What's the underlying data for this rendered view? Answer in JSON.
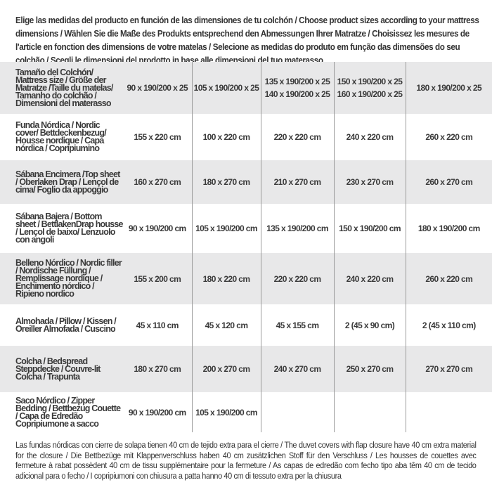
{
  "intro": "Elige las medidas del producto en función de las dimensiones de tu colchón / Choose product sizes according to your mattress dimensions / Wählen Sie die Maße des Produkts entsprechend den Abmessungen Ihrer Matratze / Choisissez les mesures de l'article en fonction des dimensions de votre matelas / Selecione as medidas do produto em função das dimensões do seu colchão / Scegli le dimensioni del prodotto in base alle dimensioni del tuo materasso",
  "table": {
    "header": {
      "label": "Tamaño del Colchón/ Mattress size / Größe der Matratze /Taille du matelas/ Tamanho do colchão / Dimensioni del materasso",
      "cols": [
        [
          "90 x 190/200 x 25"
        ],
        [
          "105 x 190/200 x 25"
        ],
        [
          "135 x 190/200 x 25",
          "140 x 190/200 x 25"
        ],
        [
          "150 x 190/200 x 25",
          "160 x 190/200 x 25"
        ],
        [
          "180 x 190/200 x 25"
        ]
      ]
    },
    "rows": [
      {
        "label": "Funda Nórdica /  Nordic cover/ Bettdeckenbezug/ Housse nordique  / Capa nórdica / Copripiumino",
        "values": [
          "155 x 220 cm",
          "100 x 220 cm",
          "220 x 220 cm",
          "240 x 220 cm",
          "260 x 220 cm"
        ]
      },
      {
        "label": "Sábana Encimera /Top sheet / Oberlaken Drap / Lençol de cima/ Foglio da appoggio",
        "values": [
          "160 x 270 cm",
          "180 x 270 cm",
          "210 x 270 cm",
          "230 x 270 cm",
          "260 x 270 cm"
        ]
      },
      {
        "label": "Sábana Bajera / Bottom sheet / BettlakenDrap housse / Lençol de baixo/ Lenzuolo con angoli",
        "values": [
          "90 x 190/200 cm",
          "105 x 190/200 cm",
          "135 x 190/200 cm",
          "150 x 190/200 cm",
          "180 x 190/200 cm"
        ]
      },
      {
        "label": "Belleno Nórdico / Nordic filler / Nordische Füllung / Remplissage nordique / Enchimento nórdico / Ripieno nordico",
        "values": [
          "155 x 200 cm",
          "180 x 220 cm",
          "220 x 220 cm",
          "240 x 220 cm",
          "260 x 220 cm"
        ]
      },
      {
        "label": "Almohada  / Pillow / Kissen / Oreiller Almofada / Cuscino",
        "values": [
          "45 x 110 cm",
          "45 x 120 cm",
          "45 x 155 cm",
          "2 (45 x 90 cm)",
          "2 (45 x 110 cm)"
        ]
      },
      {
        "label": "Colcha / Bedspread Steppdecke / Couvre-lit Colcha / Trapunta",
        "values": [
          "180 x 270 cm",
          "200 x 270 cm",
          "240 x 270 cm",
          "250 x 270 cm",
          "270 x 270 cm"
        ]
      },
      {
        "label": "Saco Nórdico / Zipper Bedding / Bettbezug Couette  / Capa de Edredão Copripiumone a sacco",
        "values": [
          "90 x 190/200 cm",
          "105 x 190/200 cm",
          "",
          "",
          ""
        ]
      }
    ]
  },
  "footer": "Las fundas nórdicas con cierre de solapa tienen 40 cm de tejido extra para el cierre  / The duvet covers with flap closure have 40 cm extra material for the closure / Die Bettbezüge mit Klappenverschluss haben 40 cm zusätzlichen Stoff für den Verschluss / Les housses de couettes avec fermeture à rabat possèdent 40 cm de tissu supplémentaire pour la fermeture / As capas de edredão com fecho tipo aba têm 40 cm de tecido adicional para o fecho / I copripiumoni con chiusura a patta hanno 40 cm di tessuto extra per la chiusura"
}
